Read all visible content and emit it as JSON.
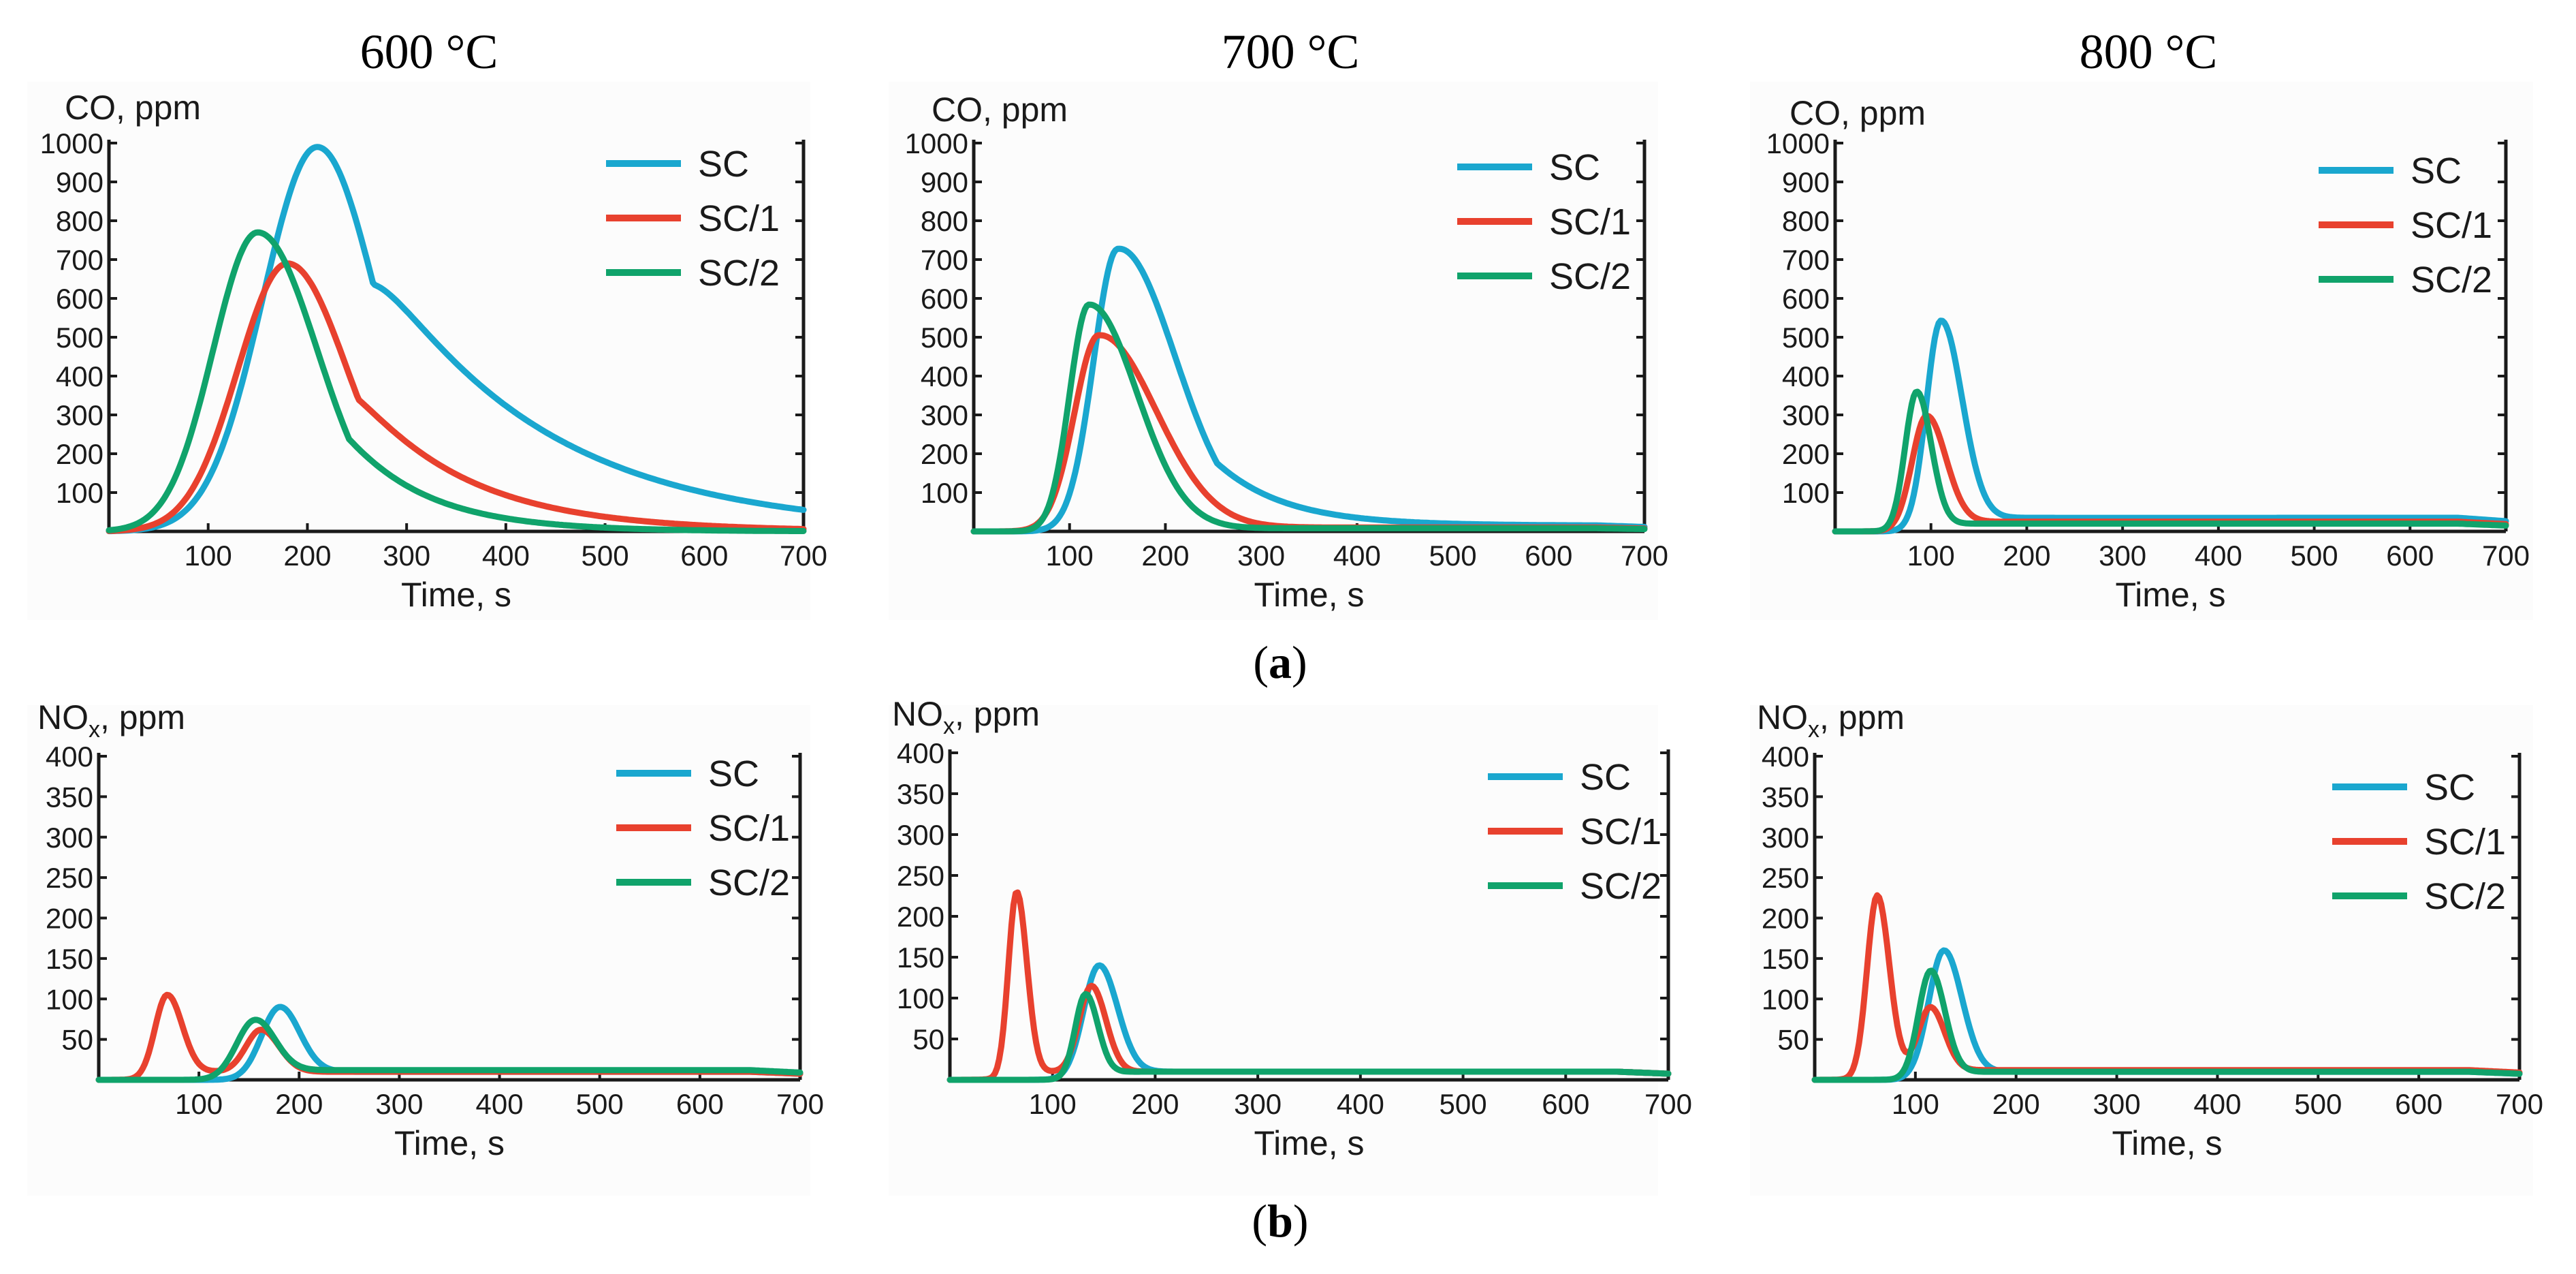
{
  "column_titles": [
    "600 °C",
    "700 °C",
    "800 °C"
  ],
  "row_labels": {
    "a": {
      "open": "(",
      "letter": "a",
      "close": ")"
    },
    "b": {
      "open": "(",
      "letter": "b",
      "close": ")"
    }
  },
  "colors": {
    "SC": "#1aa7cf",
    "SC/1": "#e8412e",
    "SC/2": "#10a36b"
  },
  "chart_data": [
    {
      "type": "line",
      "row": "a",
      "temperature": "600 °C",
      "ylabel": "CO, ppm",
      "ylabel_main": "CO, ppm",
      "ylabel_sub": "",
      "xlabel": "Time, s",
      "xlim": [
        0,
        700
      ],
      "ylim": [
        0,
        1000
      ],
      "xticks": [
        100,
        200,
        300,
        400,
        500,
        600,
        700
      ],
      "yticks": [
        100,
        200,
        300,
        400,
        500,
        600,
        700,
        800,
        900,
        1000
      ],
      "legend": "top-right",
      "series": [
        {
          "name": "SC",
          "peaks": [
            [
              210,
              990,
              55,
              170
            ]
          ],
          "base": 0
        },
        {
          "name": "SC/1",
          "peaks": [
            [
              180,
              690,
              50,
              110
            ]
          ],
          "base": 0
        },
        {
          "name": "SC/2",
          "peaks": [
            [
              150,
              770,
              45,
              80
            ]
          ],
          "base": 0
        }
      ]
    },
    {
      "type": "line",
      "row": "a",
      "temperature": "700 °C",
      "ylabel": "CO, ppm",
      "ylabel_main": "CO, ppm",
      "ylabel_sub": "",
      "xlabel": "Time, s",
      "xlim": [
        0,
        700
      ],
      "ylim": [
        0,
        1000
      ],
      "xticks": [
        100,
        200,
        300,
        400,
        500,
        600,
        700
      ],
      "yticks": [
        100,
        200,
        300,
        400,
        500,
        600,
        700,
        800,
        900,
        1000
      ],
      "legend": "top-right",
      "series": [
        {
          "name": "SC",
          "peaks": [
            [
              150,
              720,
              25,
              70
            ]
          ],
          "base": 15
        },
        {
          "name": "SC/1",
          "peaks": [
            [
              130,
              500,
              25,
              60
            ]
          ],
          "base": 10
        },
        {
          "name": "SC/2",
          "peaks": [
            [
              120,
              580,
              20,
              50
            ]
          ],
          "base": 8
        }
      ]
    },
    {
      "type": "line",
      "row": "a",
      "temperature": "800 °C",
      "ylabel": "CO, ppm",
      "ylabel_main": "CO, ppm",
      "ylabel_sub": "",
      "xlabel": "Time, s",
      "xlim": [
        0,
        700
      ],
      "ylim": [
        0,
        1000
      ],
      "xticks": [
        100,
        200,
        300,
        400,
        500,
        600,
        700
      ],
      "yticks": [
        100,
        200,
        300,
        400,
        500,
        600,
        700,
        800,
        900,
        1000
      ],
      "legend": "top-right",
      "series": [
        {
          "name": "SC",
          "peaks": [
            [
              110,
              525,
              15,
              22
            ]
          ],
          "base": 35
        },
        {
          "name": "SC/1",
          "peaks": [
            [
              95,
              285,
              15,
              20
            ]
          ],
          "base": 25
        },
        {
          "name": "SC/2",
          "peaks": [
            [
              85,
              350,
              12,
              15
            ]
          ],
          "base": 20
        }
      ]
    },
    {
      "type": "line",
      "row": "b",
      "temperature": "600 °C",
      "ylabel": "NOx, ppm",
      "ylabel_main": "NO",
      "ylabel_sub": "x",
      "ylabel_tail": ", ppm",
      "xlabel": "Time, s",
      "xlim": [
        0,
        700
      ],
      "ylim": [
        0,
        400
      ],
      "xticks": [
        100,
        200,
        300,
        400,
        500,
        600,
        700
      ],
      "yticks": [
        50,
        100,
        150,
        200,
        250,
        300,
        350,
        400
      ],
      "legend": "top-right",
      "series": [
        {
          "name": "SC",
          "peaks": [
            [
              180,
              85,
              18,
              20
            ]
          ],
          "base": 10
        },
        {
          "name": "SC/1",
          "peaks": [
            [
              68,
              100,
              12,
              15
            ],
            [
              162,
              52,
              15,
              18
            ]
          ],
          "base": 10
        },
        {
          "name": "SC/2",
          "peaks": [
            [
              155,
              68,
              18,
              20
            ]
          ],
          "base": 12
        }
      ]
    },
    {
      "type": "line",
      "row": "b",
      "temperature": "700 °C",
      "ylabel": "NOx, ppm",
      "ylabel_main": "NO",
      "ylabel_sub": "x",
      "ylabel_tail": ", ppm",
      "xlabel": "Time, s",
      "xlim": [
        0,
        700
      ],
      "ylim": [
        0,
        400
      ],
      "xticks": [
        100,
        200,
        300,
        400,
        500,
        600,
        700
      ],
      "yticks": [
        50,
        100,
        150,
        200,
        250,
        300,
        350,
        400
      ],
      "legend": "top-right",
      "series": [
        {
          "name": "SC",
          "peaks": [
            [
              145,
              135,
              15,
              18
            ]
          ],
          "base": 10
        },
        {
          "name": "SC/1",
          "peaks": [
            [
              65,
              225,
              8,
              10
            ],
            [
              138,
              105,
              12,
              14
            ]
          ],
          "base": 10
        },
        {
          "name": "SC/2",
          "peaks": [
            [
              132,
              100,
              10,
              12
            ]
          ],
          "base": 10
        }
      ]
    },
    {
      "type": "line",
      "row": "b",
      "temperature": "800 °C",
      "ylabel": "NOx, ppm",
      "ylabel_main": "NO",
      "ylabel_sub": "x",
      "ylabel_tail": ", ppm",
      "xlabel": "Time, s",
      "xlim": [
        0,
        700
      ],
      "ylim": [
        0,
        400
      ],
      "xticks": [
        100,
        200,
        300,
        400,
        500,
        600,
        700
      ],
      "yticks": [
        50,
        100,
        150,
        200,
        250,
        300,
        350,
        400
      ],
      "legend": "top-right",
      "series": [
        {
          "name": "SC",
          "peaks": [
            [
              128,
              155,
              15,
              18
            ]
          ],
          "base": 10
        },
        {
          "name": "SC/1",
          "peaks": [
            [
              62,
              222,
              10,
              12
            ],
            [
              115,
              78,
              12,
              14
            ]
          ],
          "base": 12
        },
        {
          "name": "SC/2",
          "peaks": [
            [
              115,
              130,
              12,
              14
            ]
          ],
          "base": 10
        }
      ]
    }
  ]
}
